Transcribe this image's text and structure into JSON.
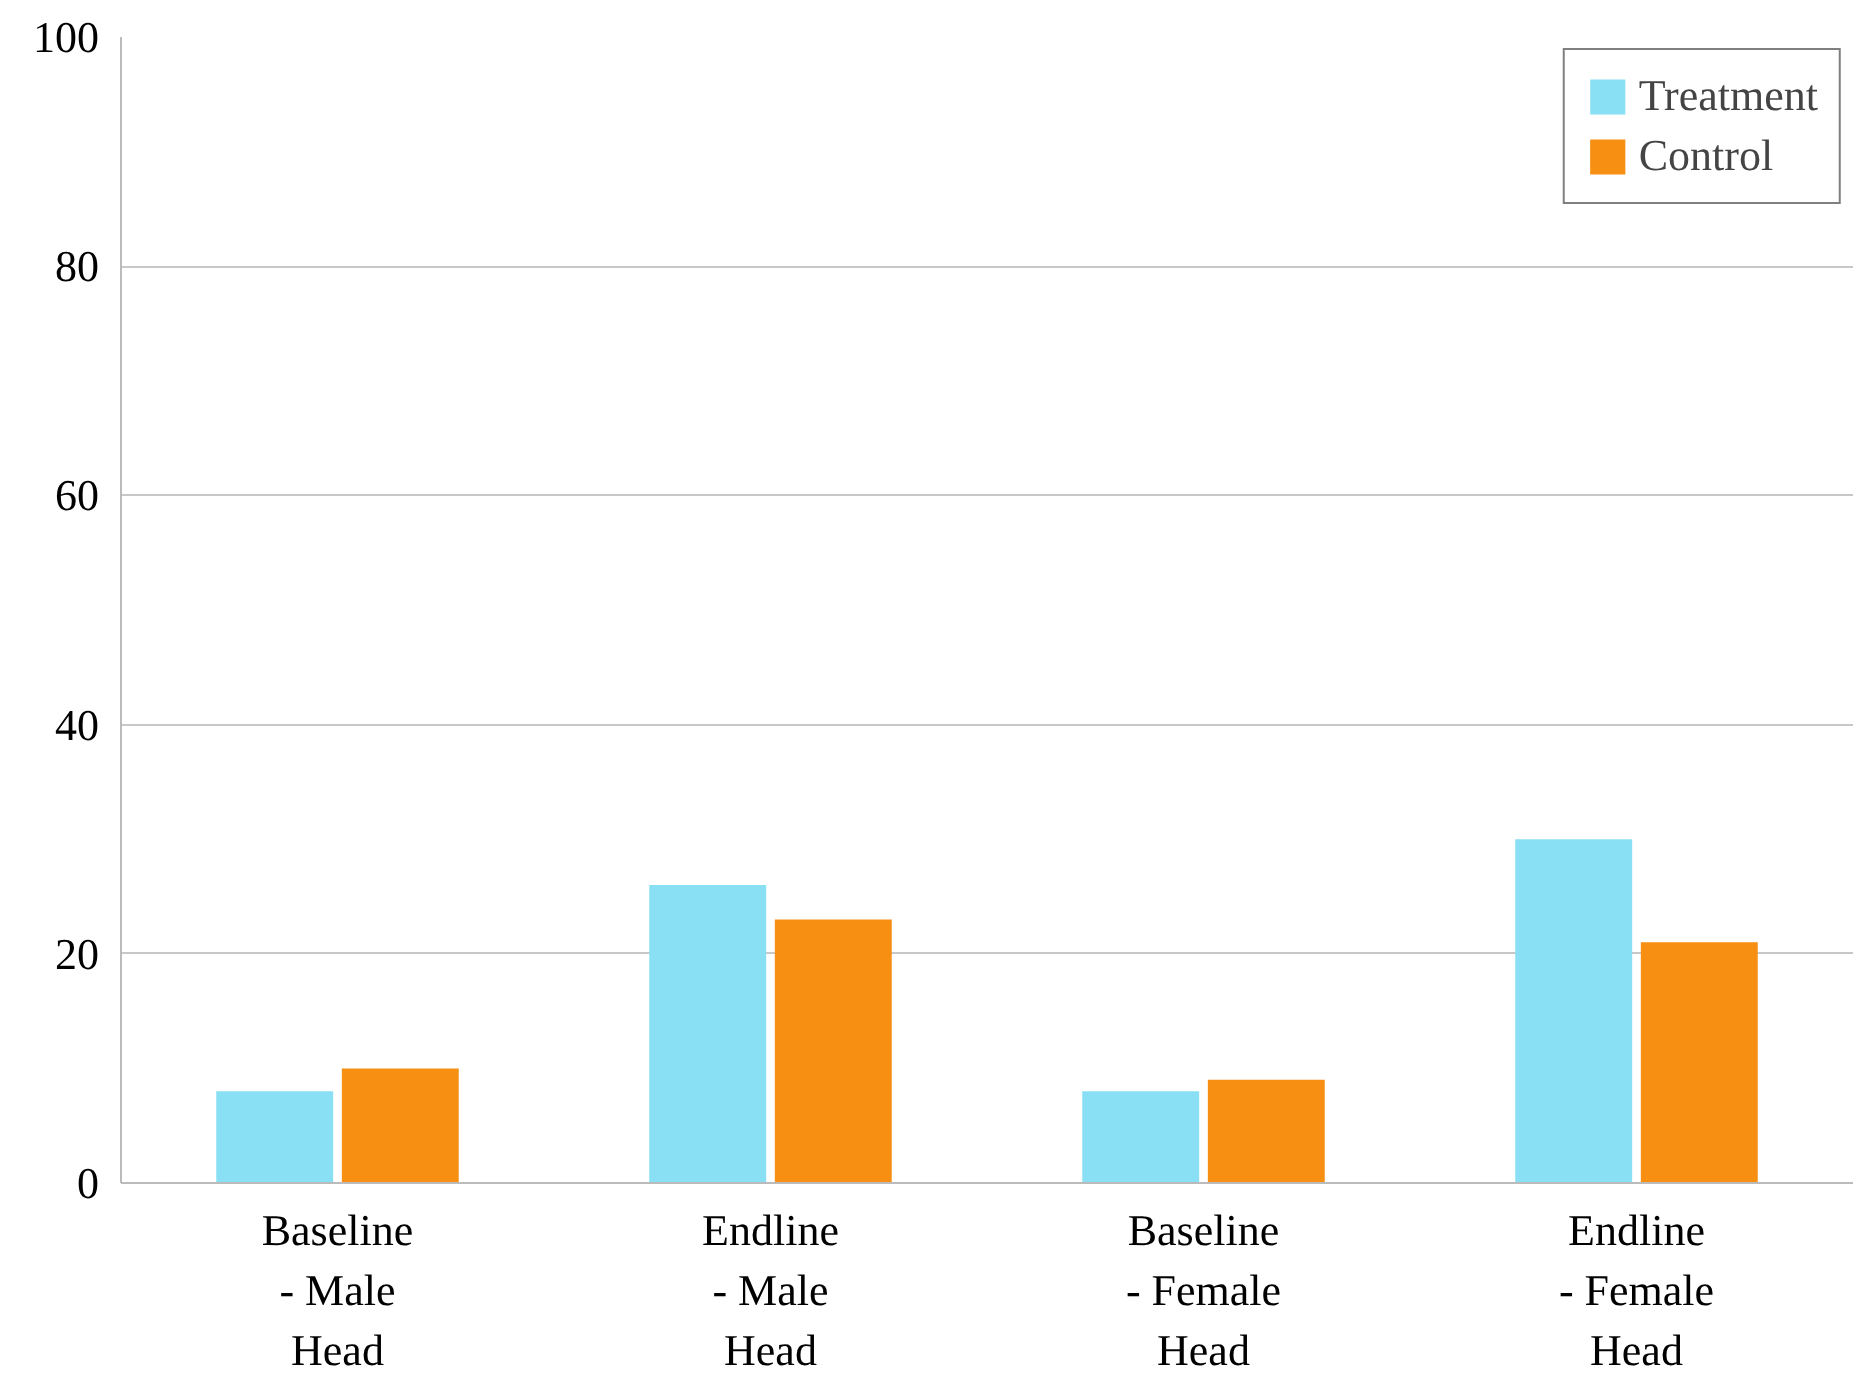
{
  "chart_data": {
    "type": "bar",
    "categories": [
      "Baseline - Male Head",
      "Endline - Male Head",
      "Baseline - Female Head",
      "Endline - Female Head"
    ],
    "series": [
      {
        "name": "Treatment",
        "color": "#89e0f5",
        "values": [
          8,
          26,
          8,
          30
        ]
      },
      {
        "name": "Control",
        "color": "#f68f12",
        "values": [
          10,
          23,
          9,
          21
        ]
      }
    ],
    "ylim": [
      0,
      100
    ],
    "yticks": [
      0,
      20,
      40,
      60,
      80,
      100
    ],
    "grid": "y",
    "legend": "top right"
  }
}
